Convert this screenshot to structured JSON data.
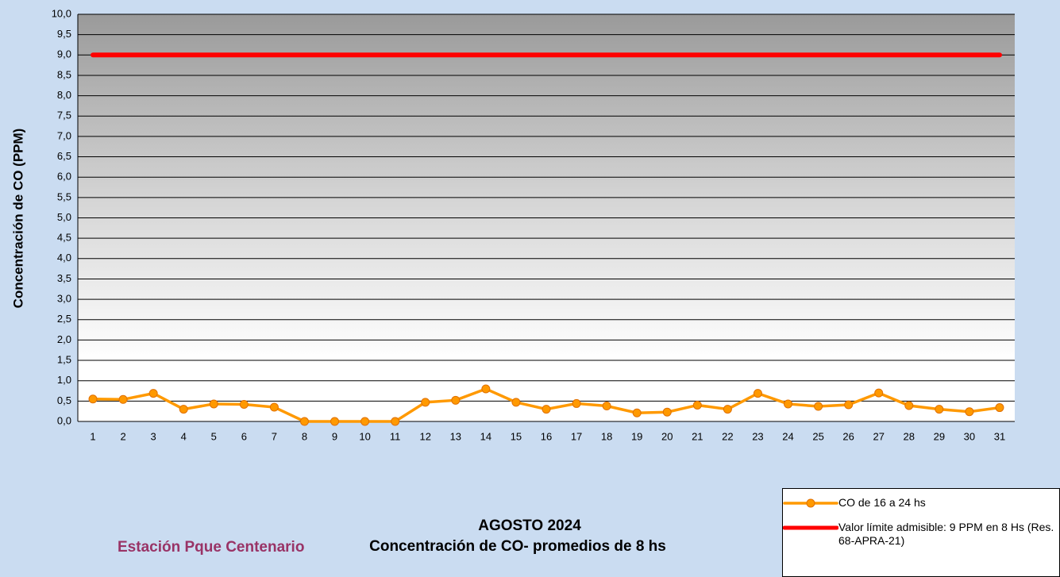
{
  "chart_data": {
    "type": "line",
    "title": "AGOSTO 2024",
    "subtitle": "Concentración de CO- promedios de 8 hs",
    "annotation": "Estación Pque Centenario",
    "ylabel": "Concentración de CO (PPM)",
    "categories": [
      1,
      2,
      3,
      4,
      5,
      6,
      7,
      8,
      9,
      10,
      11,
      12,
      13,
      14,
      15,
      16,
      17,
      18,
      19,
      20,
      21,
      22,
      23,
      24,
      25,
      26,
      27,
      28,
      29,
      30,
      31
    ],
    "series": [
      {
        "name": "CO de 16 a 24 hs",
        "color": "#ff9900",
        "marker": true,
        "values": [
          0.55,
          0.54,
          0.69,
          0.3,
          0.43,
          0.42,
          0.35,
          0.0,
          0.0,
          0.0,
          0.0,
          0.47,
          0.52,
          0.8,
          0.47,
          0.3,
          0.44,
          0.38,
          0.21,
          0.23,
          0.4,
          0.3,
          0.69,
          0.43,
          0.37,
          0.41,
          0.7,
          0.39,
          0.3,
          0.24,
          0.34
        ]
      },
      {
        "name": "Valor límite admisible: 9 PPM en 8 Hs (Res. 68-APRA-21)",
        "color": "#ff0000",
        "marker": false,
        "values": [
          9,
          9,
          9,
          9,
          9,
          9,
          9,
          9,
          9,
          9,
          9,
          9,
          9,
          9,
          9,
          9,
          9,
          9,
          9,
          9,
          9,
          9,
          9,
          9,
          9,
          9,
          9,
          9,
          9,
          9,
          9
        ]
      }
    ],
    "ylim": [
      0,
      10
    ],
    "yticks": [
      {
        "value": 0,
        "label": "0,0"
      },
      {
        "value": 0.5,
        "label": "0,5"
      },
      {
        "value": 1,
        "label": "1,0"
      },
      {
        "value": 1.5,
        "label": "1,5"
      },
      {
        "value": 2,
        "label": "2,0"
      },
      {
        "value": 2.5,
        "label": "2,5"
      },
      {
        "value": 3,
        "label": "3,0"
      },
      {
        "value": 3.5,
        "label": "3,5"
      },
      {
        "value": 4,
        "label": "4,0"
      },
      {
        "value": 4.5,
        "label": "4,5"
      },
      {
        "value": 5,
        "label": "5,0"
      },
      {
        "value": 5.5,
        "label": "5,5"
      },
      {
        "value": 6,
        "label": "6,0"
      },
      {
        "value": 6.5,
        "label": "6,5"
      },
      {
        "value": 7,
        "label": "7,0"
      },
      {
        "value": 7.5,
        "label": "7,5"
      },
      {
        "value": 8,
        "label": "8,0"
      },
      {
        "value": 8.5,
        "label": "8,5"
      },
      {
        "value": 9,
        "label": "9,0"
      },
      {
        "value": 9.5,
        "label": "9,5"
      },
      {
        "value": 10,
        "label": "10,0"
      }
    ],
    "grid": true,
    "legend": "bottom-right"
  }
}
